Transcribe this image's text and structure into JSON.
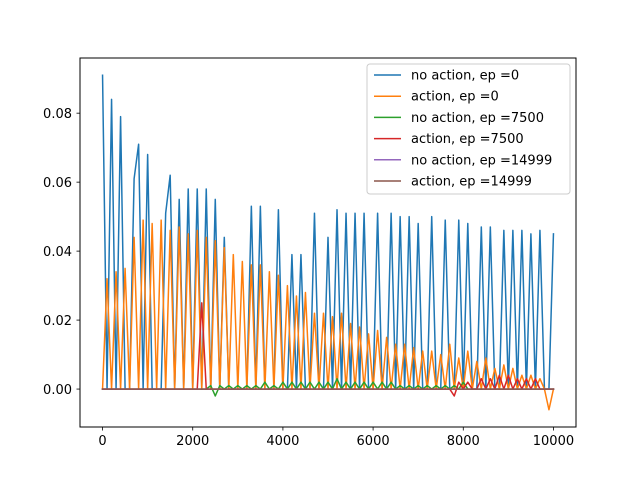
{
  "chart_data": {
    "type": "line",
    "title": "",
    "xlabel": "",
    "ylabel": "",
    "xlim": [
      -500,
      10500
    ],
    "ylim": [
      -0.011,
      0.096
    ],
    "x_ticks": [
      0,
      2000,
      4000,
      6000,
      8000,
      10000
    ],
    "x_tick_labels": [
      "0",
      "2000",
      "4000",
      "6000",
      "8000",
      "10000"
    ],
    "y_ticks": [
      0.0,
      0.02,
      0.04,
      0.06,
      0.08
    ],
    "y_tick_labels": [
      "0.00",
      "0.02",
      "0.04",
      "0.06",
      "0.08"
    ],
    "grid": false,
    "legend_position": "top-right",
    "series": [
      {
        "name": "no action, ep =0",
        "color": "#1f77b4",
        "x": [
          0,
          100,
          200,
          300,
          400,
          500,
          600,
          700,
          800,
          900,
          1000,
          1100,
          1200,
          1300,
          1400,
          1500,
          1600,
          1700,
          1800,
          1900,
          2000,
          2100,
          2200,
          2300,
          2400,
          2500,
          2600,
          2700,
          2800,
          2900,
          3000,
          3100,
          3200,
          3300,
          3400,
          3500,
          3600,
          3700,
          3800,
          3900,
          4000,
          4100,
          4200,
          4300,
          4400,
          4500,
          4600,
          4700,
          4800,
          4900,
          5000,
          5100,
          5200,
          5300,
          5400,
          5500,
          5600,
          5700,
          5800,
          5900,
          6000,
          6100,
          6200,
          6300,
          6400,
          6500,
          6600,
          6700,
          6800,
          6900,
          7000,
          7100,
          7200,
          7300,
          7400,
          7500,
          7600,
          7700,
          7800,
          7900,
          8000,
          8100,
          8200,
          8300,
          8400,
          8500,
          8600,
          8700,
          8800,
          8900,
          9000,
          9100,
          9200,
          9300,
          9400,
          9500,
          9600,
          9700,
          9800,
          9900,
          10000
        ],
        "y": [
          0.091,
          0,
          0.084,
          0,
          0.079,
          0,
          0,
          0.061,
          0.071,
          0,
          0.068,
          0,
          0,
          0,
          0.051,
          0.062,
          0,
          0.055,
          0,
          0.058,
          0,
          0.058,
          0,
          0.058,
          0,
          0.055,
          0,
          0.044,
          0,
          0,
          0,
          0,
          0,
          0.053,
          0,
          0.053,
          0,
          0,
          0,
          0.052,
          0,
          0,
          0.039,
          0,
          0.039,
          0,
          0,
          0.051,
          0,
          0,
          0.044,
          0,
          0.052,
          0,
          0.051,
          0,
          0.051,
          0,
          0.051,
          0,
          0,
          0.051,
          0,
          0,
          0.051,
          0,
          0.05,
          0,
          0.05,
          0,
          0.048,
          0,
          0,
          0.05,
          0,
          0,
          0.049,
          0,
          0,
          0.049,
          0,
          0.048,
          0,
          0,
          0.047,
          0,
          0.047,
          0,
          0,
          0.046,
          0,
          0.046,
          0,
          0.046,
          0,
          0.045,
          0,
          0.046,
          0,
          0,
          0.045
        ]
      },
      {
        "name": "action, ep =0",
        "color": "#ff7f0e",
        "x": [
          0,
          100,
          200,
          300,
          400,
          500,
          600,
          700,
          800,
          900,
          1000,
          1100,
          1200,
          1300,
          1400,
          1500,
          1600,
          1700,
          1800,
          1900,
          2000,
          2100,
          2200,
          2300,
          2400,
          2500,
          2600,
          2700,
          2800,
          2900,
          3000,
          3100,
          3200,
          3300,
          3400,
          3500,
          3600,
          3700,
          3800,
          3900,
          4000,
          4100,
          4200,
          4300,
          4400,
          4500,
          4600,
          4700,
          4800,
          4900,
          5000,
          5100,
          5200,
          5300,
          5400,
          5500,
          5600,
          5700,
          5800,
          5900,
          6000,
          6100,
          6200,
          6300,
          6400,
          6500,
          6600,
          6700,
          6800,
          6900,
          7000,
          7100,
          7200,
          7300,
          7400,
          7500,
          7600,
          7700,
          7800,
          7900,
          8000,
          8100,
          8200,
          8300,
          8400,
          8500,
          8600,
          8700,
          8800,
          8900,
          9000,
          9100,
          9200,
          9300,
          9400,
          9500,
          9600,
          9700,
          9800,
          9900,
          10000
        ],
        "y": [
          0,
          0.032,
          0,
          0.034,
          0,
          0.035,
          0,
          0.044,
          0,
          0.049,
          0,
          0.048,
          0,
          0.049,
          0,
          0.046,
          0,
          0.047,
          0,
          0.045,
          0,
          0.046,
          0,
          0.044,
          0,
          0.043,
          0,
          0.041,
          0,
          0.039,
          0,
          0.037,
          0,
          0.036,
          0,
          0.036,
          0,
          0.034,
          0,
          0.033,
          0,
          0.03,
          0,
          0.027,
          0,
          0.028,
          0,
          0.022,
          0,
          0.022,
          0,
          0.021,
          0,
          0.022,
          0,
          0.019,
          0,
          0.018,
          0,
          0.016,
          0,
          0.017,
          0,
          0.015,
          0,
          0.013,
          0,
          0.013,
          0,
          0.012,
          0,
          0.011,
          0,
          0.011,
          0,
          0.01,
          0,
          0.013,
          0,
          0.009,
          0,
          0.011,
          0,
          0.008,
          0,
          0.009,
          0,
          0.006,
          0,
          0.007,
          0,
          0.006,
          0,
          0.004,
          0,
          0.004,
          0,
          0.003,
          0,
          -0.006,
          0
        ]
      },
      {
        "name": "no action, ep =7500",
        "color": "#2ca02c",
        "x": [
          0,
          2300,
          2400,
          2500,
          2600,
          2700,
          2800,
          2900,
          3000,
          3100,
          3200,
          3300,
          3400,
          3500,
          3600,
          3700,
          3800,
          3900,
          4000,
          4100,
          4200,
          4300,
          4400,
          4500,
          4600,
          4700,
          4800,
          4900,
          5000,
          5100,
          5200,
          5300,
          5400,
          5500,
          5600,
          5700,
          5800,
          5900,
          6000,
          6100,
          6200,
          6300,
          6400,
          6500,
          6600,
          6700,
          6800,
          6900,
          7000,
          7100,
          7200,
          7300,
          7400,
          7500,
          7600,
          7700,
          7800,
          7900,
          8000,
          8100,
          8200,
          10000
        ],
        "y": [
          0,
          0,
          0.001,
          -0.002,
          0.001,
          0,
          0.001,
          0,
          0.001,
          0,
          0.001,
          0,
          0.001,
          0,
          0.002,
          0,
          0.001,
          0,
          0.002,
          0,
          0.002,
          0,
          0.002,
          0,
          0.002,
          0,
          0.002,
          0,
          0.002,
          0,
          0.003,
          0,
          0.002,
          0,
          0.002,
          0,
          0.002,
          0,
          0.002,
          0,
          0.002,
          0,
          0.002,
          0,
          0.001,
          0,
          0.001,
          0,
          0.001,
          0,
          0.001,
          0,
          0.001,
          0,
          0.001,
          0,
          0.001,
          0,
          0.002,
          0,
          0,
          0
        ]
      },
      {
        "name": "action, ep =7500",
        "color": "#d62728",
        "x": [
          0,
          2000,
          2100,
          2200,
          2300,
          2400,
          2500,
          7700,
          7800,
          7900,
          8000,
          8100,
          8200,
          8300,
          8400,
          8500,
          8600,
          8700,
          8800,
          8900,
          9000,
          9100,
          9200,
          9300,
          9400,
          9500,
          9600,
          9700,
          9800,
          9900,
          10000
        ],
        "y": [
          0,
          0,
          0,
          0.025,
          0,
          0,
          0,
          0,
          -0.002,
          0.002,
          0,
          0.002,
          0,
          0,
          0.003,
          0,
          0.003,
          0,
          0.004,
          0,
          0.004,
          0,
          0.003,
          0,
          0.003,
          0,
          0.003,
          0,
          0,
          0,
          0
        ]
      },
      {
        "name": "no action, ep =14999",
        "color": "#9467bd",
        "x": [
          0,
          10000
        ],
        "y": [
          0,
          0
        ]
      },
      {
        "name": "action, ep =14999",
        "color": "#8c564b",
        "x": [
          0,
          10000
        ],
        "y": [
          0,
          0
        ]
      }
    ]
  }
}
